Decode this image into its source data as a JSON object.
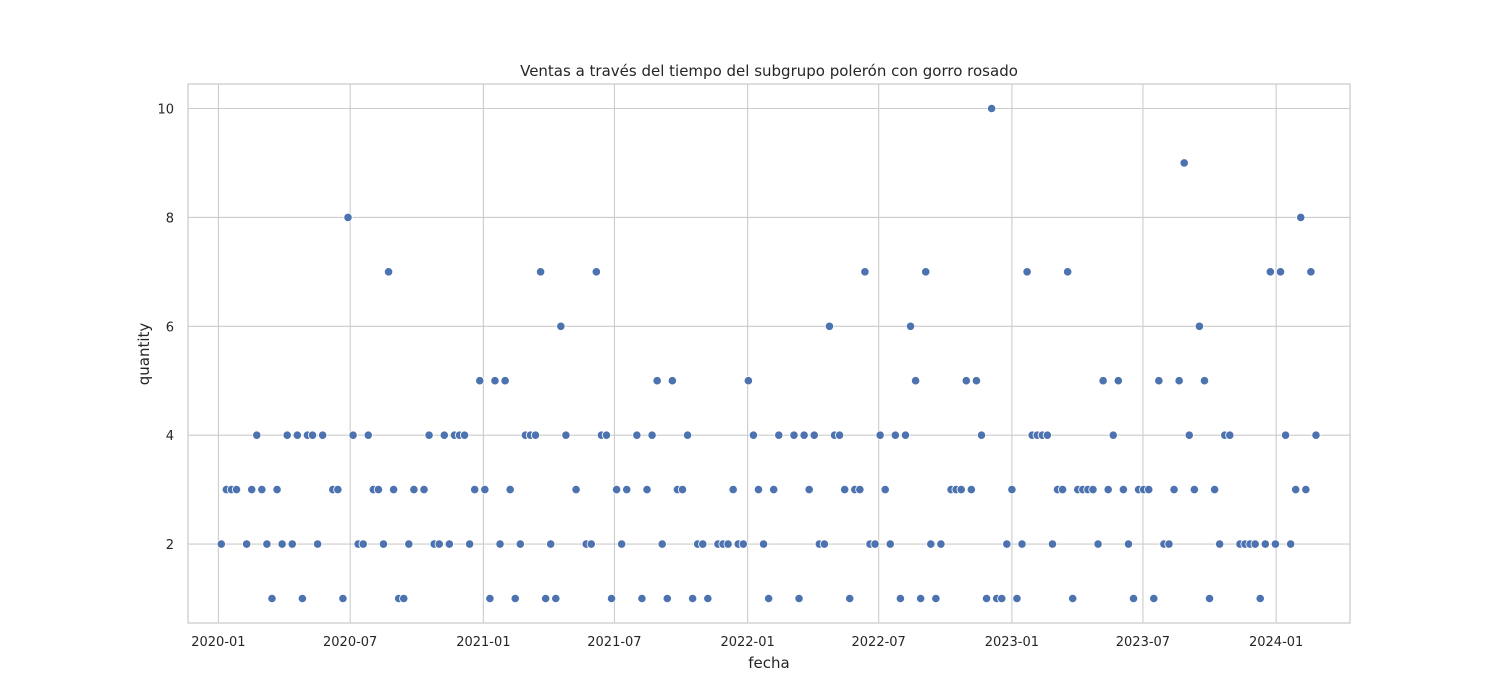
{
  "chart_data": {
    "type": "scatter",
    "title": "Ventas a través del tiempo del subgrupo polerón con gorro rosado",
    "xlabel": "fecha",
    "ylabel": "quantity",
    "x_ticks": [
      "2020-01",
      "2020-07",
      "2021-01",
      "2021-07",
      "2022-01",
      "2022-07",
      "2023-01",
      "2023-07",
      "2024-01"
    ],
    "y_ticks": [
      "2",
      "4",
      "6",
      "8",
      "10"
    ],
    "xlim": [
      "2019-11-20",
      "2024-04-12"
    ],
    "ylim": [
      0.55,
      10.45
    ],
    "grid": true,
    "color": "#4c72b0",
    "points": [
      [
        "2020-01-05",
        2
      ],
      [
        "2020-01-12",
        3
      ],
      [
        "2020-01-19",
        3
      ],
      [
        "2020-01-26",
        3
      ],
      [
        "2020-02-09",
        2
      ],
      [
        "2020-02-16",
        3
      ],
      [
        "2020-02-23",
        4
      ],
      [
        "2020-03-01",
        3
      ],
      [
        "2020-03-08",
        2
      ],
      [
        "2020-03-15",
        1
      ],
      [
        "2020-03-22",
        3
      ],
      [
        "2020-03-29",
        2
      ],
      [
        "2020-04-05",
        4
      ],
      [
        "2020-04-12",
        2
      ],
      [
        "2020-04-19",
        4
      ],
      [
        "2020-04-26",
        1
      ],
      [
        "2020-05-03",
        4
      ],
      [
        "2020-05-10",
        4
      ],
      [
        "2020-05-17",
        2
      ],
      [
        "2020-05-24",
        4
      ],
      [
        "2020-06-07",
        3
      ],
      [
        "2020-06-14",
        3
      ],
      [
        "2020-06-21",
        1
      ],
      [
        "2020-06-28",
        8
      ],
      [
        "2020-07-05",
        4
      ],
      [
        "2020-07-12",
        2
      ],
      [
        "2020-07-19",
        2
      ],
      [
        "2020-07-26",
        4
      ],
      [
        "2020-08-02",
        3
      ],
      [
        "2020-08-09",
        3
      ],
      [
        "2020-08-16",
        2
      ],
      [
        "2020-08-23",
        7
      ],
      [
        "2020-08-30",
        3
      ],
      [
        "2020-09-06",
        1
      ],
      [
        "2020-09-13",
        1
      ],
      [
        "2020-09-20",
        2
      ],
      [
        "2020-09-27",
        3
      ],
      [
        "2020-10-11",
        3
      ],
      [
        "2020-10-18",
        4
      ],
      [
        "2020-10-25",
        2
      ],
      [
        "2020-11-01",
        2
      ],
      [
        "2020-11-08",
        4
      ],
      [
        "2020-11-15",
        2
      ],
      [
        "2020-11-22",
        4
      ],
      [
        "2020-11-29",
        4
      ],
      [
        "2020-12-06",
        4
      ],
      [
        "2020-12-13",
        2
      ],
      [
        "2020-12-20",
        3
      ],
      [
        "2020-12-27",
        5
      ],
      [
        "2021-01-03",
        3
      ],
      [
        "2021-01-10",
        1
      ],
      [
        "2021-01-17",
        5
      ],
      [
        "2021-01-24",
        2
      ],
      [
        "2021-01-31",
        5
      ],
      [
        "2021-02-07",
        3
      ],
      [
        "2021-02-14",
        1
      ],
      [
        "2021-02-21",
        2
      ],
      [
        "2021-02-28",
        4
      ],
      [
        "2021-03-07",
        4
      ],
      [
        "2021-03-14",
        4
      ],
      [
        "2021-03-21",
        7
      ],
      [
        "2021-03-28",
        1
      ],
      [
        "2021-04-04",
        2
      ],
      [
        "2021-04-11",
        1
      ],
      [
        "2021-04-18",
        6
      ],
      [
        "2021-04-25",
        4
      ],
      [
        "2021-05-09",
        3
      ],
      [
        "2021-05-23",
        2
      ],
      [
        "2021-05-30",
        2
      ],
      [
        "2021-06-06",
        7
      ],
      [
        "2021-06-13",
        4
      ],
      [
        "2021-06-20",
        4
      ],
      [
        "2021-06-27",
        1
      ],
      [
        "2021-07-04",
        3
      ],
      [
        "2021-07-11",
        2
      ],
      [
        "2021-07-18",
        3
      ],
      [
        "2021-08-01",
        4
      ],
      [
        "2021-08-08",
        1
      ],
      [
        "2021-08-15",
        3
      ],
      [
        "2021-08-22",
        4
      ],
      [
        "2021-08-29",
        5
      ],
      [
        "2021-09-05",
        2
      ],
      [
        "2021-09-12",
        1
      ],
      [
        "2021-09-19",
        5
      ],
      [
        "2021-09-26",
        3
      ],
      [
        "2021-10-03",
        3
      ],
      [
        "2021-10-10",
        4
      ],
      [
        "2021-10-17",
        1
      ],
      [
        "2021-10-24",
        2
      ],
      [
        "2021-10-31",
        2
      ],
      [
        "2021-11-07",
        1
      ],
      [
        "2021-11-21",
        2
      ],
      [
        "2021-11-28",
        2
      ],
      [
        "2021-12-05",
        2
      ],
      [
        "2021-12-12",
        3
      ],
      [
        "2021-12-19",
        2
      ],
      [
        "2021-12-26",
        2
      ],
      [
        "2022-01-02",
        5
      ],
      [
        "2022-01-09",
        4
      ],
      [
        "2022-01-16",
        3
      ],
      [
        "2022-01-23",
        2
      ],
      [
        "2022-01-30",
        1
      ],
      [
        "2022-02-06",
        3
      ],
      [
        "2022-02-13",
        4
      ],
      [
        "2022-03-06",
        4
      ],
      [
        "2022-03-13",
        1
      ],
      [
        "2022-03-20",
        4
      ],
      [
        "2022-03-27",
        3
      ],
      [
        "2022-04-03",
        4
      ],
      [
        "2022-04-10",
        2
      ],
      [
        "2022-04-17",
        2
      ],
      [
        "2022-04-24",
        6
      ],
      [
        "2022-05-01",
        4
      ],
      [
        "2022-05-08",
        4
      ],
      [
        "2022-05-15",
        3
      ],
      [
        "2022-05-22",
        1
      ],
      [
        "2022-05-29",
        3
      ],
      [
        "2022-06-05",
        3
      ],
      [
        "2022-06-12",
        7
      ],
      [
        "2022-06-19",
        2
      ],
      [
        "2022-06-26",
        2
      ],
      [
        "2022-07-03",
        4
      ],
      [
        "2022-07-10",
        3
      ],
      [
        "2022-07-17",
        2
      ],
      [
        "2022-07-24",
        4
      ],
      [
        "2022-07-31",
        1
      ],
      [
        "2022-08-07",
        4
      ],
      [
        "2022-08-14",
        6
      ],
      [
        "2022-08-21",
        5
      ],
      [
        "2022-08-28",
        1
      ],
      [
        "2022-09-04",
        7
      ],
      [
        "2022-09-11",
        2
      ],
      [
        "2022-09-18",
        1
      ],
      [
        "2022-09-25",
        2
      ],
      [
        "2022-10-09",
        3
      ],
      [
        "2022-10-16",
        3
      ],
      [
        "2022-10-23",
        3
      ],
      [
        "2022-10-30",
        5
      ],
      [
        "2022-11-06",
        3
      ],
      [
        "2022-11-13",
        5
      ],
      [
        "2022-11-20",
        4
      ],
      [
        "2022-11-27",
        1
      ],
      [
        "2022-12-04",
        10
      ],
      [
        "2022-12-11",
        1
      ],
      [
        "2022-12-18",
        1
      ],
      [
        "2022-12-25",
        2
      ],
      [
        "2023-01-01",
        3
      ],
      [
        "2023-01-08",
        1
      ],
      [
        "2023-01-15",
        2
      ],
      [
        "2023-01-22",
        7
      ],
      [
        "2023-01-29",
        4
      ],
      [
        "2023-02-05",
        4
      ],
      [
        "2023-02-12",
        4
      ],
      [
        "2023-02-19",
        4
      ],
      [
        "2023-02-26",
        2
      ],
      [
        "2023-03-05",
        3
      ],
      [
        "2023-03-12",
        3
      ],
      [
        "2023-03-19",
        7
      ],
      [
        "2023-03-26",
        1
      ],
      [
        "2023-04-02",
        3
      ],
      [
        "2023-04-09",
        3
      ],
      [
        "2023-04-16",
        3
      ],
      [
        "2023-04-23",
        3
      ],
      [
        "2023-04-30",
        2
      ],
      [
        "2023-05-07",
        5
      ],
      [
        "2023-05-14",
        3
      ],
      [
        "2023-05-21",
        4
      ],
      [
        "2023-05-28",
        5
      ],
      [
        "2023-06-04",
        3
      ],
      [
        "2023-06-11",
        2
      ],
      [
        "2023-06-18",
        1
      ],
      [
        "2023-06-25",
        3
      ],
      [
        "2023-07-02",
        3
      ],
      [
        "2023-07-09",
        3
      ],
      [
        "2023-07-16",
        1
      ],
      [
        "2023-07-23",
        5
      ],
      [
        "2023-07-30",
        2
      ],
      [
        "2023-08-06",
        2
      ],
      [
        "2023-08-13",
        3
      ],
      [
        "2023-08-20",
        5
      ],
      [
        "2023-08-27",
        9
      ],
      [
        "2023-09-03",
        4
      ],
      [
        "2023-09-10",
        3
      ],
      [
        "2023-09-17",
        6
      ],
      [
        "2023-09-24",
        5
      ],
      [
        "2023-10-01",
        1
      ],
      [
        "2023-10-08",
        3
      ],
      [
        "2023-10-15",
        2
      ],
      [
        "2023-10-22",
        4
      ],
      [
        "2023-10-29",
        4
      ],
      [
        "2023-11-12",
        2
      ],
      [
        "2023-11-19",
        2
      ],
      [
        "2023-11-26",
        2
      ],
      [
        "2023-12-03",
        2
      ],
      [
        "2023-12-10",
        1
      ],
      [
        "2023-12-17",
        2
      ],
      [
        "2023-12-24",
        7
      ],
      [
        "2023-12-31",
        2
      ],
      [
        "2024-01-07",
        7
      ],
      [
        "2024-01-14",
        4
      ],
      [
        "2024-01-21",
        2
      ],
      [
        "2024-01-28",
        3
      ],
      [
        "2024-02-04",
        8
      ],
      [
        "2024-02-11",
        3
      ],
      [
        "2024-02-18",
        7
      ],
      [
        "2024-02-25",
        4
      ]
    ]
  }
}
